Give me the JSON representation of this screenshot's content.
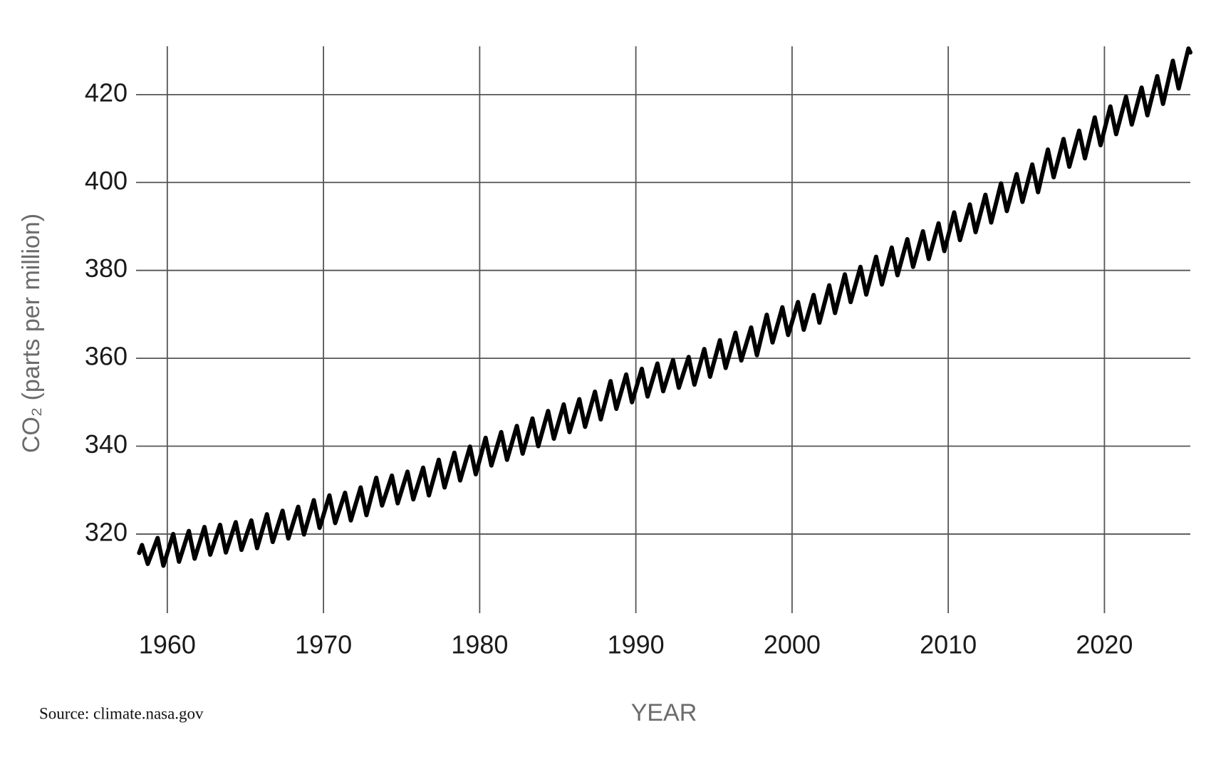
{
  "chart_data": {
    "type": "line",
    "ylabel": "CO₂ (parts per million)",
    "xlabel": "YEAR",
    "source": "Source: climate.nasa.gov",
    "color": "#000000",
    "grid": true,
    "xlim": [
      1958,
      2025.5
    ],
    "ylim": [
      302,
      431
    ],
    "xticks": [
      1960,
      1970,
      1980,
      1990,
      2000,
      2010,
      2020
    ],
    "yticks": [
      320,
      340,
      360,
      380,
      400,
      420
    ],
    "x": [
      1958.2,
      1958.38,
      1958.75,
      1959.38,
      1959.75,
      1960.38,
      1960.75,
      1961.38,
      1961.75,
      1962.38,
      1962.75,
      1963.38,
      1963.75,
      1964.38,
      1964.75,
      1965.38,
      1965.75,
      1966.38,
      1966.75,
      1967.38,
      1967.75,
      1968.38,
      1968.75,
      1969.38,
      1969.75,
      1970.38,
      1970.75,
      1971.38,
      1971.75,
      1972.38,
      1972.75,
      1973.38,
      1973.75,
      1974.38,
      1974.75,
      1975.38,
      1975.75,
      1976.38,
      1976.75,
      1977.38,
      1977.75,
      1978.38,
      1978.75,
      1979.38,
      1979.75,
      1980.38,
      1980.75,
      1981.38,
      1981.75,
      1982.38,
      1982.75,
      1983.38,
      1983.75,
      1984.38,
      1984.75,
      1985.38,
      1985.75,
      1986.38,
      1986.75,
      1987.38,
      1987.75,
      1988.38,
      1988.75,
      1989.38,
      1989.75,
      1990.38,
      1990.75,
      1991.38,
      1991.75,
      1992.38,
      1992.75,
      1993.38,
      1993.75,
      1994.38,
      1994.75,
      1995.38,
      1995.75,
      1996.38,
      1996.75,
      1997.38,
      1997.75,
      1998.38,
      1998.75,
      1999.38,
      1999.75,
      2000.38,
      2000.75,
      2001.38,
      2001.75,
      2002.38,
      2002.75,
      2003.38,
      2003.75,
      2004.38,
      2004.75,
      2005.38,
      2005.75,
      2006.38,
      2006.75,
      2007.38,
      2007.75,
      2008.38,
      2008.75,
      2009.38,
      2009.75,
      2010.38,
      2010.75,
      2011.38,
      2011.75,
      2012.38,
      2012.75,
      2013.38,
      2013.75,
      2014.38,
      2014.75,
      2015.38,
      2015.75,
      2016.38,
      2016.75,
      2017.38,
      2017.75,
      2018.38,
      2018.75,
      2019.38,
      2019.75,
      2020.38,
      2020.75,
      2021.38,
      2021.75,
      2022.38,
      2022.75,
      2023.38,
      2023.75,
      2024.38,
      2024.75,
      2025.38,
      2025.5
    ],
    "values": [
      315.7,
      317.5,
      313.2,
      319.1,
      312.8,
      320.0,
      313.7,
      320.7,
      314.4,
      321.6,
      315.3,
      322.1,
      315.8,
      322.7,
      316.4,
      323.1,
      316.8,
      324.5,
      318.2,
      325.3,
      319.0,
      326.2,
      319.9,
      327.7,
      321.4,
      328.8,
      322.5,
      329.4,
      323.1,
      330.6,
      324.3,
      332.8,
      326.5,
      333.3,
      327.0,
      334.2,
      327.9,
      335.1,
      328.8,
      336.9,
      330.6,
      338.5,
      332.2,
      339.9,
      333.6,
      341.9,
      335.6,
      343.2,
      336.9,
      344.6,
      338.3,
      346.3,
      340.0,
      348.0,
      341.7,
      349.5,
      343.2,
      350.7,
      344.4,
      352.4,
      346.1,
      354.8,
      348.5,
      356.3,
      350.0,
      357.6,
      351.3,
      358.8,
      352.5,
      359.6,
      353.3,
      360.3,
      354.0,
      362.1,
      355.8,
      364.1,
      357.8,
      365.8,
      359.5,
      367.0,
      360.7,
      369.9,
      363.6,
      371.6,
      365.3,
      372.8,
      366.5,
      374.4,
      368.1,
      376.6,
      370.3,
      379.1,
      372.8,
      380.8,
      374.5,
      383.1,
      376.8,
      385.2,
      378.9,
      387.1,
      380.8,
      388.9,
      382.6,
      390.7,
      384.4,
      393.2,
      386.9,
      395.0,
      388.7,
      397.2,
      390.9,
      399.8,
      393.5,
      401.9,
      395.6,
      404.1,
      397.8,
      407.5,
      401.2,
      409.9,
      403.6,
      411.8,
      405.5,
      414.8,
      408.5,
      417.3,
      411.0,
      419.5,
      413.2,
      421.6,
      415.3,
      424.2,
      417.9,
      427.7,
      421.4,
      430.5,
      429.6
    ]
  }
}
